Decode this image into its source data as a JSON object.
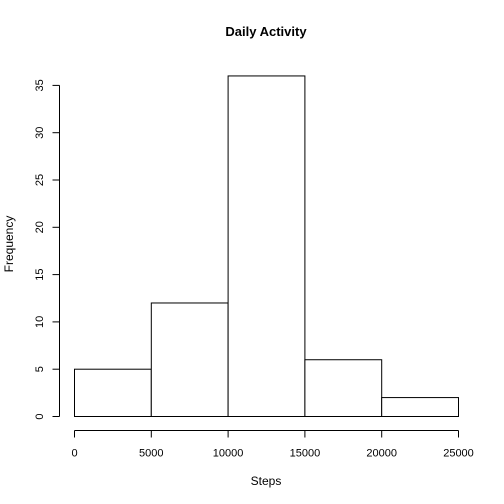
{
  "chart_data": {
    "type": "bar",
    "title": "Daily Activity",
    "xlabel": "Steps",
    "ylabel": "Frequency",
    "bins": [
      {
        "from": 0,
        "to": 5000,
        "count": 5
      },
      {
        "from": 5000,
        "to": 10000,
        "count": 12
      },
      {
        "from": 10000,
        "to": 15000,
        "count": 36
      },
      {
        "from": 15000,
        "to": 20000,
        "count": 6
      },
      {
        "from": 20000,
        "to": 25000,
        "count": 2
      }
    ],
    "xlim": [
      0,
      25000
    ],
    "ylim": [
      0,
      36
    ],
    "x_ticks": [
      "0",
      "5000",
      "10000",
      "15000",
      "20000",
      "25000"
    ],
    "y_ticks": [
      "0",
      "5",
      "10",
      "15",
      "20",
      "25",
      "30",
      "35"
    ],
    "grid": false,
    "colors": {
      "bar_fill": "#ffffff",
      "bar_stroke": "#000000"
    }
  }
}
